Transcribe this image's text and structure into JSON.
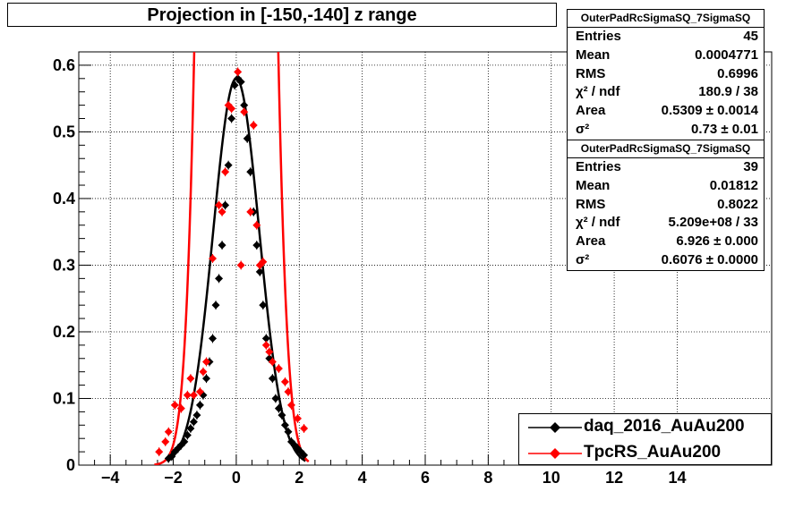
{
  "chart_data": {
    "type": "scatter",
    "title": "Projection in [-150,-140] z range",
    "xlim": [
      -5,
      17
    ],
    "ylim": [
      0,
      0.62
    ],
    "x_ticks": [
      "−4",
      "−2",
      "0",
      "2",
      "4",
      "6",
      "8",
      "10",
      "12",
      "14"
    ],
    "x_tick_values": [
      -4,
      -2,
      0,
      2,
      4,
      6,
      8,
      10,
      12,
      14
    ],
    "y_ticks": [
      "0",
      "0.1",
      "0.2",
      "0.3",
      "0.4",
      "0.5",
      "0.6"
    ],
    "y_tick_values": [
      0,
      0.1,
      0.2,
      0.3,
      0.4,
      0.5,
      0.6
    ],
    "grid": true,
    "legend_position": "bottom-right",
    "series": [
      {
        "name": "daq_2016_AuAu200",
        "color": "#000000",
        "fit_sigma": 0.73,
        "fit_peak": 0.58,
        "points": [
          [
            -2.15,
            0.01
          ],
          [
            -2.05,
            0.013
          ],
          [
            -1.95,
            0.02
          ],
          [
            -1.85,
            0.025
          ],
          [
            -1.75,
            0.03
          ],
          [
            -1.65,
            0.035
          ],
          [
            -1.55,
            0.045
          ],
          [
            -1.45,
            0.055
          ],
          [
            -1.35,
            0.065
          ],
          [
            -1.25,
            0.075
          ],
          [
            -1.15,
            0.09
          ],
          [
            -1.05,
            0.105
          ],
          [
            -0.95,
            0.13
          ],
          [
            -0.85,
            0.155
          ],
          [
            -0.75,
            0.19
          ],
          [
            -0.65,
            0.24
          ],
          [
            -0.55,
            0.28
          ],
          [
            -0.45,
            0.33
          ],
          [
            -0.35,
            0.39
          ],
          [
            -0.25,
            0.45
          ],
          [
            -0.15,
            0.52
          ],
          [
            -0.05,
            0.57
          ],
          [
            0.05,
            0.58
          ],
          [
            0.15,
            0.575
          ],
          [
            0.25,
            0.54
          ],
          [
            0.35,
            0.49
          ],
          [
            0.45,
            0.44
          ],
          [
            0.55,
            0.38
          ],
          [
            0.65,
            0.33
          ],
          [
            0.75,
            0.29
          ],
          [
            0.85,
            0.24
          ],
          [
            0.95,
            0.19
          ],
          [
            1.05,
            0.16
          ],
          [
            1.15,
            0.13
          ],
          [
            1.25,
            0.1
          ],
          [
            1.35,
            0.085
          ],
          [
            1.45,
            0.075
          ],
          [
            1.55,
            0.06
          ],
          [
            1.65,
            0.05
          ],
          [
            1.75,
            0.035
          ],
          [
            1.85,
            0.03
          ],
          [
            1.95,
            0.025
          ],
          [
            2.05,
            0.02
          ],
          [
            2.15,
            0.015
          ]
        ]
      },
      {
        "name": "TpcRS_AuAu200",
        "color": "#ff0000",
        "fit_sigma": 0.6076,
        "fit_peak": 6.926,
        "points": [
          [
            -2.45,
            0.02
          ],
          [
            -2.25,
            0.035
          ],
          [
            -2.15,
            0.05
          ],
          [
            -1.95,
            0.09
          ],
          [
            -1.75,
            0.085
          ],
          [
            -1.55,
            0.105
          ],
          [
            -1.45,
            0.13
          ],
          [
            -1.35,
            0.105
          ],
          [
            -1.15,
            0.11
          ],
          [
            -1.05,
            0.14
          ],
          [
            -0.95,
            0.155
          ],
          [
            -0.75,
            0.31
          ],
          [
            -0.55,
            0.39
          ],
          [
            -0.45,
            0.38
          ],
          [
            -0.35,
            0.44
          ],
          [
            -0.25,
            0.54
          ],
          [
            -0.15,
            0.535
          ],
          [
            0.05,
            0.59
          ],
          [
            0.15,
            0.3
          ],
          [
            0.25,
            0.53
          ],
          [
            0.45,
            0.38
          ],
          [
            0.55,
            0.51
          ],
          [
            0.65,
            0.36
          ],
          [
            0.75,
            0.3
          ],
          [
            0.85,
            0.305
          ],
          [
            0.95,
            0.18
          ],
          [
            1.05,
            0.17
          ],
          [
            1.15,
            0.155
          ],
          [
            1.35,
            0.145
          ],
          [
            1.55,
            0.125
          ],
          [
            1.65,
            0.11
          ],
          [
            1.75,
            0.09
          ],
          [
            1.95,
            0.07
          ],
          [
            2.15,
            0.055
          ]
        ]
      }
    ]
  },
  "stats_boxes": [
    {
      "header": "OuterPadRcSigmaSQ_7SigmaSQ",
      "rows": [
        {
          "label": "Entries",
          "value": "45"
        },
        {
          "label": "Mean",
          "value": "0.0004771"
        },
        {
          "label": "RMS",
          "value": "0.6996"
        },
        {
          "label": "χ² / ndf",
          "value": "180.9 / 38"
        },
        {
          "label": "Area",
          "value": "0.5309 ± 0.0014"
        },
        {
          "label": "σ²",
          "value": "0.73 ± 0.01"
        }
      ]
    },
    {
      "header": "OuterPadRcSigmaSQ_7SigmaSQ",
      "rows": [
        {
          "label": "Entries",
          "value": "39"
        },
        {
          "label": "Mean",
          "value": "0.01812"
        },
        {
          "label": "RMS",
          "value": "0.8022"
        },
        {
          "label": "χ² / ndf",
          "value": "5.209e+08 / 33"
        },
        {
          "label": "Area",
          "value": "6.926 ± 0.000"
        },
        {
          "label": "σ²",
          "value": "0.6076 ± 0.0000"
        }
      ]
    }
  ],
  "legend": [
    {
      "label": "daq_2016_AuAu200",
      "color": "#000000"
    },
    {
      "label": "TpcRS_AuAu200",
      "color": "#ff0000"
    }
  ]
}
